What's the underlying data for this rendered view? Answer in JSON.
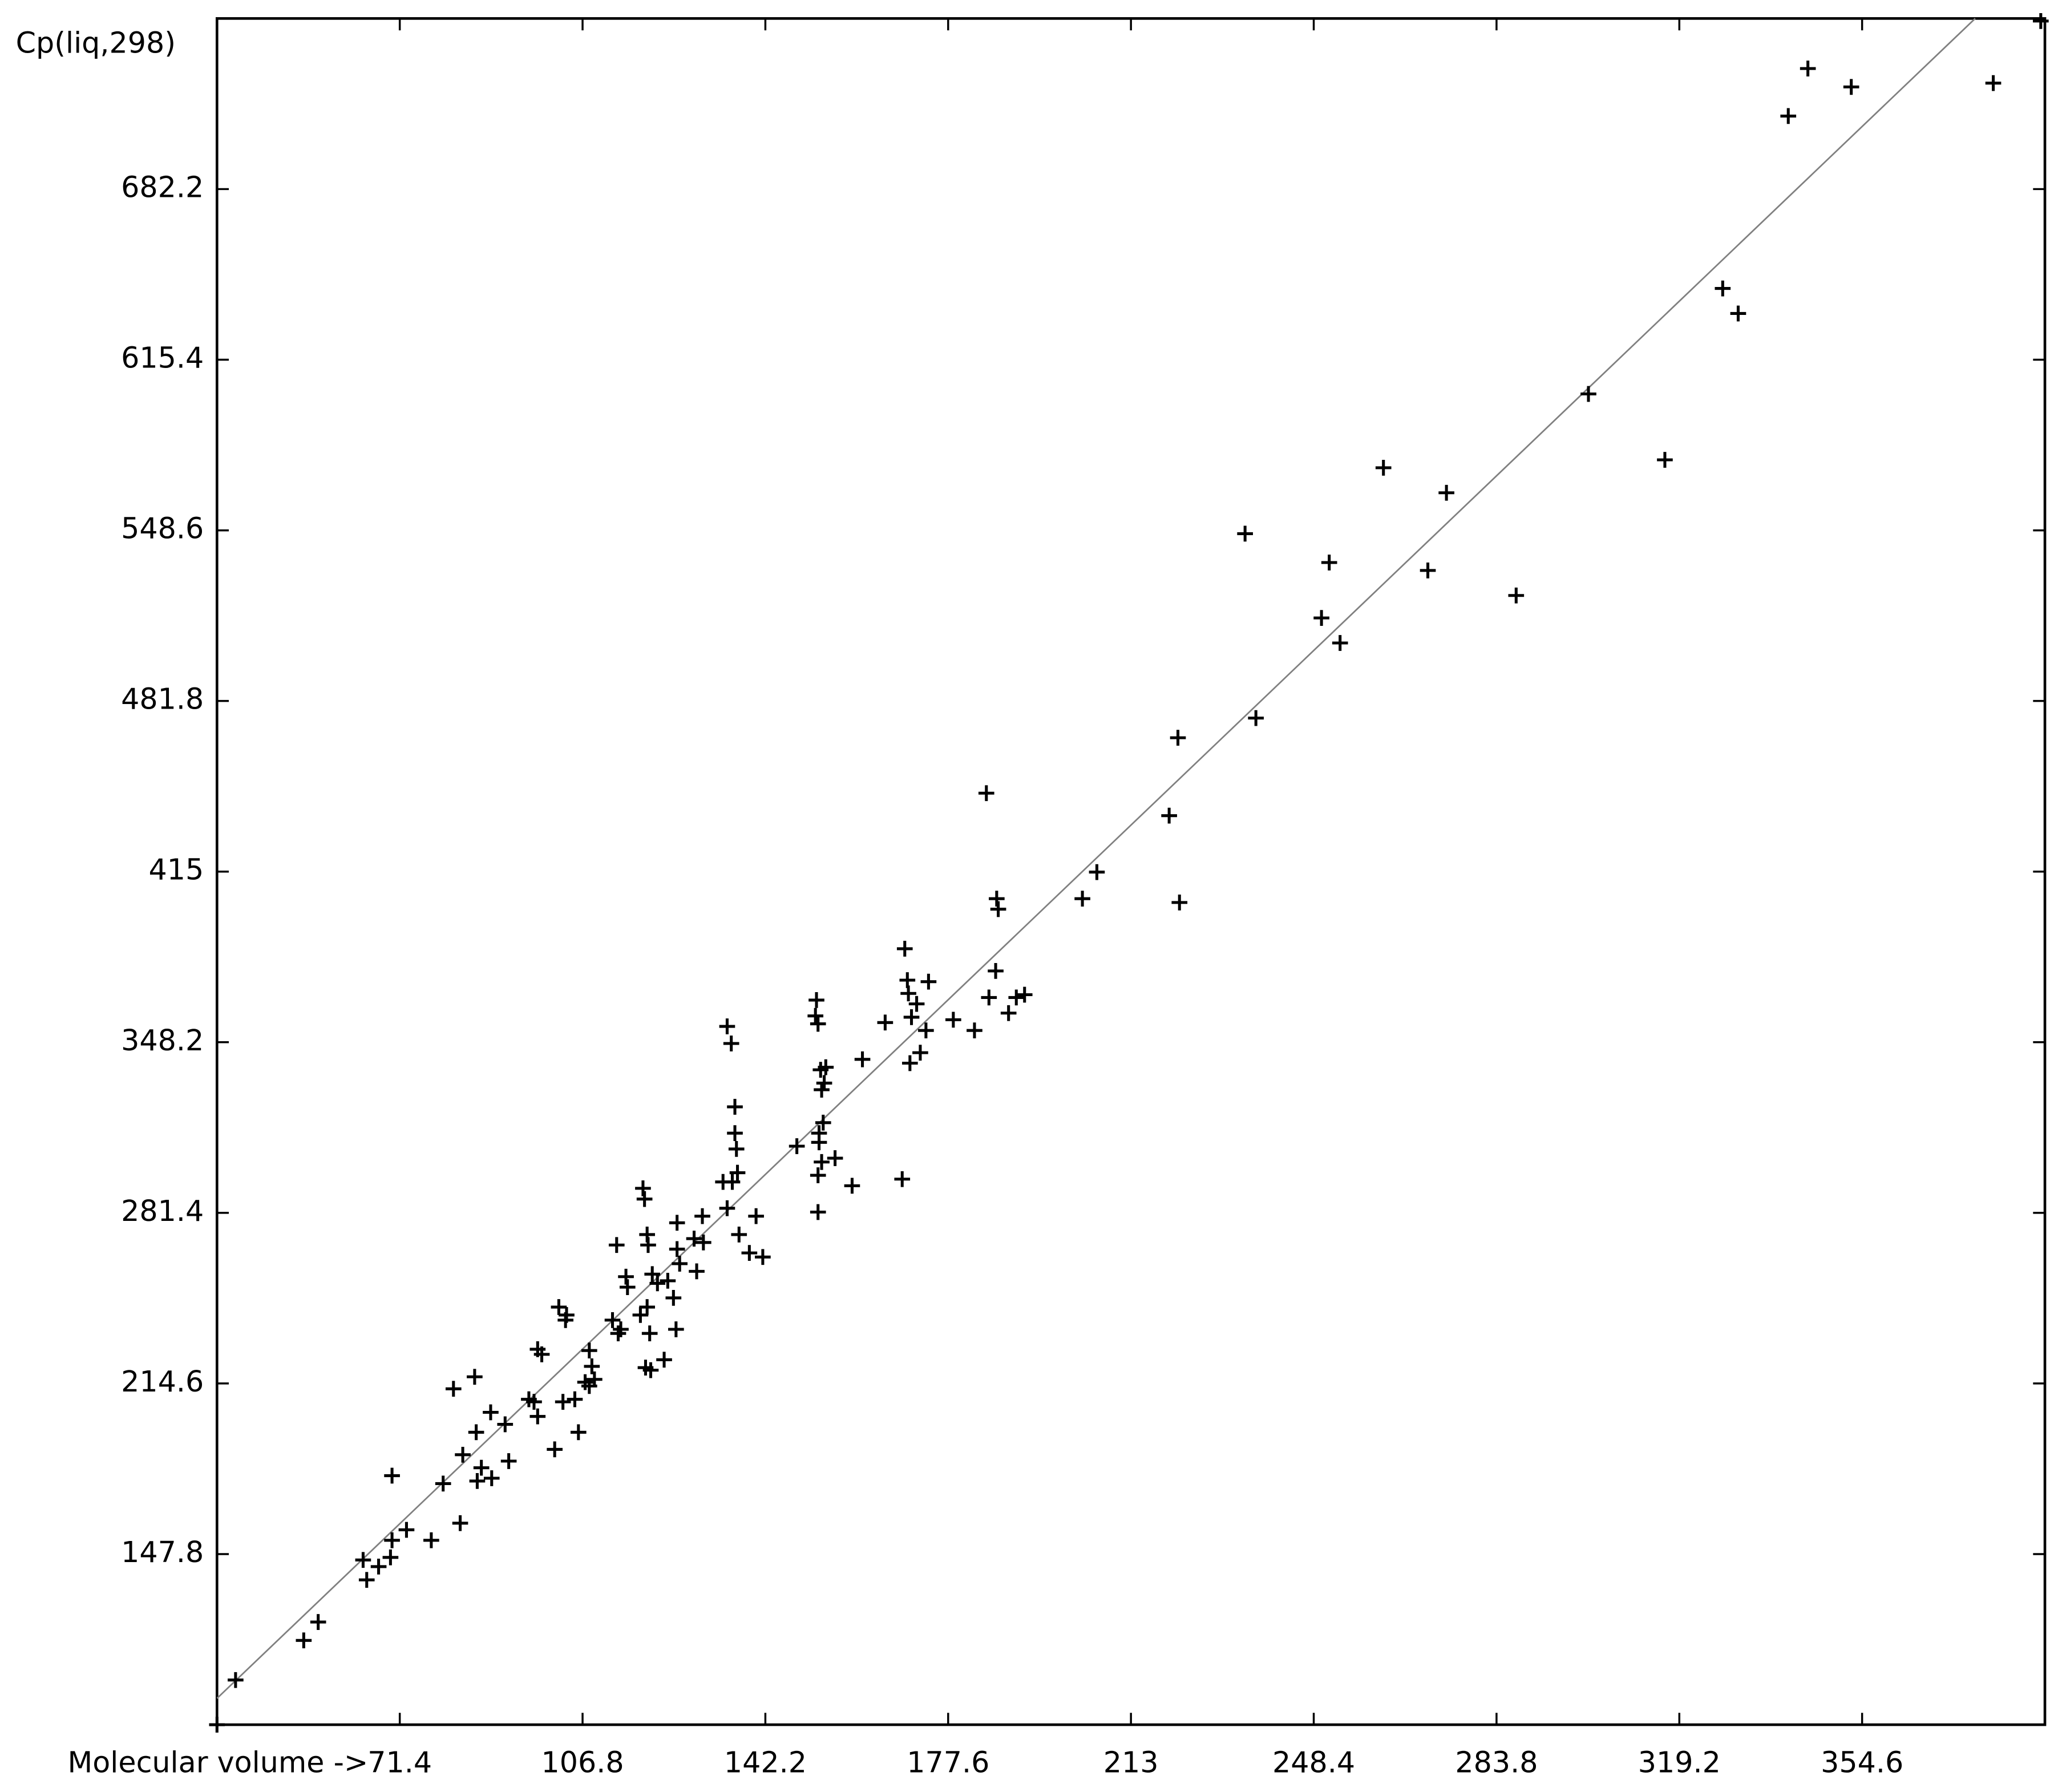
{
  "chart_data": {
    "type": "scatter",
    "ylabel": "Cp(liq,298)",
    "xlabel": "Molecular volume ->",
    "xlim": [
      36,
      390
    ],
    "ylim": [
      81,
      749
    ],
    "xticks": [
      71.4,
      106.8,
      142.2,
      177.6,
      213.0,
      248.4,
      283.8,
      319.2,
      354.6
    ],
    "yticks": [
      147.8,
      214.6,
      281.4,
      348.2,
      415.0,
      481.8,
      548.6,
      615.4,
      682.2
    ],
    "point_color": "#000000",
    "fit_color": "#808080",
    "fit": {
      "x": [
        36,
        376.5
      ],
      "y": [
        91.3,
        749
      ]
    },
    "points": {
      "x": [
        36,
        39.6,
        52.8,
        55.6,
        64.3,
        65.0,
        67.3,
        69.6,
        69.9,
        69.9,
        72.7,
        77.5,
        79.8,
        81.8,
        83.1,
        83.6,
        85.9,
        86.2,
        86.4,
        87.2,
        89.0,
        89.2,
        91.8,
        92.5,
        96.4,
        97.4,
        98.1,
        98.1,
        98.9,
        101.4,
        102.2,
        103.0,
        103.5,
        103.7,
        105.3,
        106.0,
        107.3,
        108.1,
        108.1,
        108.6,
        109.1,
        112.6,
        113.4,
        113.7,
        114.2,
        115.2,
        115.5,
        118.0,
        118.5,
        118.8,
        119.0,
        119.3,
        119.3,
        119.5,
        119.8,
        120.0,
        120.3,
        121.3,
        122.6,
        123.3,
        124.4,
        124.9,
        125.1,
        125.1,
        125.6,
        128.4,
        128.9,
        130.0,
        130.2,
        134.0,
        134.8,
        134.8,
        135.6,
        135.8,
        136.3,
        136.3,
        136.6,
        136.8,
        137.1,
        139.1,
        140.4,
        141.7,
        148.3,
        151.9,
        152.1,
        152.4,
        152.4,
        152.4,
        152.6,
        152.6,
        152.9,
        153.1,
        153.1,
        153.4,
        153.6,
        153.9,
        155.7,
        159.0,
        161.0,
        165.4,
        168.7,
        169.2,
        169.7,
        169.9,
        170.2,
        170.5,
        171.5,
        172.2,
        173.3,
        173.8,
        178.6,
        182.7,
        185.0,
        185.5,
        186.8,
        187.0,
        187.3,
        189.3,
        190.8,
        192.4,
        203.6,
        206.4,
        220.4,
        222.1,
        222.4,
        235.1,
        237.2,
        249.9,
        251.4,
        253.5,
        261.9,
        270.5,
        274.1,
        287.6,
        301.6,
        316.4,
        327.6,
        330.6,
        340.3,
        344.1,
        352.5,
        380.0,
        389.2
      ],
      "y": [
        81,
        98.5,
        114.0,
        121.2,
        145.5,
        137.7,
        142.9,
        146.5,
        153.2,
        178.5,
        157.3,
        153.2,
        175.4,
        212.5,
        159.9,
        186.7,
        217.2,
        195.5,
        176.4,
        181.6,
        203.3,
        177.5,
        198.6,
        184.2,
        208.4,
        207.4,
        201.7,
        228.0,
        226.0,
        188.8,
        244.5,
        207.4,
        239.4,
        241.4,
        208.4,
        195.5,
        215.1,
        227.5,
        213.6,
        221.3,
        216.2,
        239.4,
        268.8,
        234.2,
        235.8,
        256.4,
        252.3,
        241.4,
        291.0,
        286.8,
        220.8,
        244.5,
        272.9,
        268.8,
        234.2,
        219.8,
        257.4,
        253.8,
        223.9,
        254.8,
        248.1,
        235.8,
        277.5,
        267.2,
        261.5,
        271.3,
        258.5,
        280.1,
        269.8,
        293.5,
        283.2,
        354.4,
        347.7,
        293.5,
        322.9,
        312.6,
        306.4,
        297.1,
        272.9,
        265.7,
        280.1,
        264.1,
        307.5,
        358.5,
        364.7,
        281.7,
        355.4,
        296.1,
        312.6,
        309.0,
        337.4,
        329.6,
        301.3,
        316.7,
        332.2,
        338.4,
        302.8,
        292.0,
        341.5,
        355.9,
        294.6,
        384.8,
        372.5,
        367.3,
        340.0,
        358.0,
        363.2,
        344.1,
        352.8,
        371.9,
        357.0,
        352.8,
        445.7,
        365.7,
        376.1,
        404.4,
        400.3,
        359.6,
        365.7,
        366.8,
        404.4,
        414.8,
        436.9,
        467.4,
        402.9,
        547.3,
        475.1,
        514.3,
        536.0,
        504.5,
        573.1,
        532.9,
        563.3,
        523.1,
        602.0,
        576.2,
        643.3,
        633.5,
        710.8,
        729.4,
        722.2,
        723.7,
        748.0
      ]
    }
  }
}
